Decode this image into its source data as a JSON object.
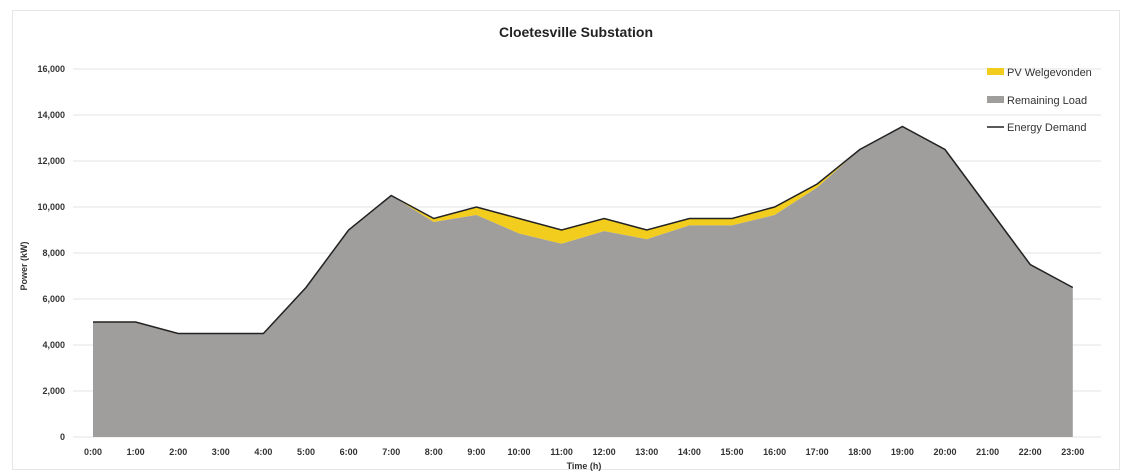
{
  "chart_data": {
    "type": "area",
    "title": "Cloetesville Substation",
    "xlabel": "Time (h)",
    "ylabel": "Power (kW)",
    "ylim": [
      0,
      16000
    ],
    "yticks": [
      0,
      2000,
      4000,
      6000,
      8000,
      10000,
      12000,
      14000,
      16000
    ],
    "ytick_labels": [
      "0",
      "2,000",
      "4,000",
      "6,000",
      "8,000",
      "10,000",
      "12,000",
      "14,000",
      "16,000"
    ],
    "grid": true,
    "legend_position": "top-right",
    "categories": [
      "0:00",
      "1:00",
      "2:00",
      "3:00",
      "4:00",
      "5:00",
      "6:00",
      "7:00",
      "8:00",
      "9:00",
      "10:00",
      "11:00",
      "12:00",
      "13:00",
      "14:00",
      "15:00",
      "16:00",
      "17:00",
      "18:00",
      "19:00",
      "20:00",
      "21:00",
      "22:00",
      "23:00"
    ],
    "series": [
      {
        "name": "PV Welgevonden",
        "kind": "stacked-area",
        "color": "#f2cd1d",
        "values": [
          0,
          0,
          0,
          0,
          0,
          0,
          0,
          0,
          150,
          350,
          650,
          600,
          550,
          400,
          300,
          300,
          350,
          150,
          0,
          0,
          0,
          0,
          0,
          0
        ]
      },
      {
        "name": "Remaining Load",
        "kind": "stacked-area",
        "color": "#a09e9c",
        "values": [
          5000,
          5000,
          4500,
          4500,
          4500,
          6500,
          9000,
          10500,
          9350,
          9650,
          8850,
          8400,
          8950,
          8600,
          9200,
          9200,
          9650,
          10850,
          12500,
          13500,
          12500,
          10000,
          7500,
          6500
        ]
      },
      {
        "name": "Energy Demand",
        "kind": "line",
        "color": "#222222",
        "values": [
          5000,
          5000,
          4500,
          4500,
          4500,
          6500,
          9000,
          10500,
          9500,
          10000,
          9500,
          9000,
          9500,
          9000,
          9500,
          9500,
          10000,
          11000,
          12500,
          13500,
          12500,
          10000,
          7500,
          6500
        ]
      }
    ]
  }
}
